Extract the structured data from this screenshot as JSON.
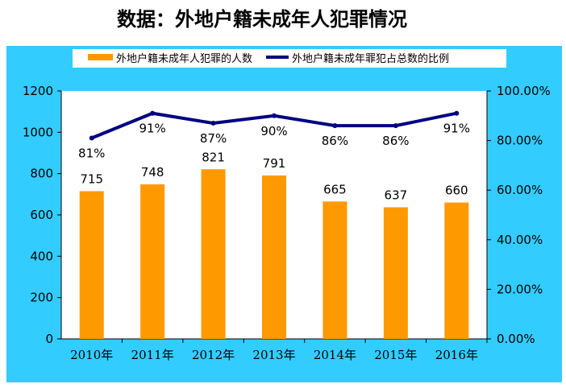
{
  "chart_data": {
    "type": "bar+line",
    "title": "数据：外地户籍未成年人犯罪情况",
    "categories": [
      "2010年",
      "2011年",
      "2012年",
      "2013年",
      "2014年",
      "2015年",
      "2016年"
    ],
    "series": [
      {
        "name": "外地户籍未成年人犯罪的人数",
        "type": "bar",
        "axis": "left",
        "color": "#FF9900",
        "values": [
          715,
          748,
          821,
          791,
          665,
          637,
          660
        ],
        "labels": [
          "715",
          "748",
          "821",
          "791",
          "665",
          "637",
          "660"
        ]
      },
      {
        "name": "外地户籍未成年罪犯占总数的比例",
        "type": "line",
        "axis": "right",
        "color": "#000080",
        "values": [
          81,
          91,
          87,
          90,
          86,
          86,
          91
        ],
        "labels": [
          "81%",
          "91%",
          "87%",
          "90%",
          "86%",
          "86%",
          "91%"
        ]
      }
    ],
    "left_axis": {
      "min": 0,
      "max": 1200,
      "ticks": [
        "0",
        "200",
        "400",
        "600",
        "800",
        "1000",
        "1200"
      ]
    },
    "right_axis": {
      "min": 0,
      "max": 100,
      "ticks": [
        "0.00%",
        "20.00%",
        "40.00%",
        "60.00%",
        "80.00%",
        "100.00%"
      ]
    },
    "legend": "top",
    "grid": false,
    "background": "#33CCFF"
  }
}
